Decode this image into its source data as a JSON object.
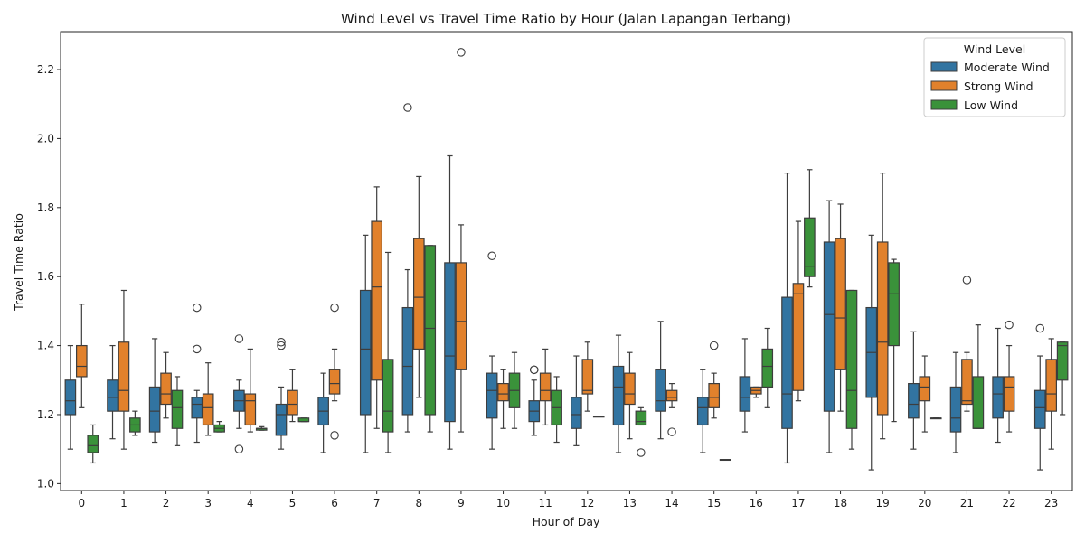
{
  "chart_data": {
    "type": "box",
    "title": "Wind Level vs Travel Time Ratio by Hour (Jalan Lapangan Terbang)",
    "xlabel": "Hour of Day",
    "ylabel": "Travel Time Ratio",
    "categories": [
      "0",
      "1",
      "2",
      "3",
      "4",
      "5",
      "6",
      "7",
      "8",
      "9",
      "10",
      "11",
      "12",
      "13",
      "14",
      "15",
      "16",
      "17",
      "18",
      "19",
      "20",
      "21",
      "22",
      "23"
    ],
    "ylim": [
      0.98,
      2.31
    ],
    "yticks": [
      "1.0",
      "1.2",
      "1.4",
      "1.6",
      "1.8",
      "2.0",
      "2.2"
    ],
    "legend": {
      "title": "Wind Level",
      "placement": "top-right"
    },
    "series": [
      {
        "name": "Moderate Wind",
        "color": "#1f77b4",
        "fill": "#3274a1",
        "boxes": [
          {
            "min": 1.1,
            "q1": 1.2,
            "median": 1.24,
            "q3": 1.3,
            "max": 1.4,
            "outliers": []
          },
          {
            "min": 1.13,
            "q1": 1.21,
            "median": 1.25,
            "q3": 1.3,
            "max": 1.4,
            "outliers": []
          },
          {
            "min": 1.12,
            "q1": 1.15,
            "median": 1.21,
            "q3": 1.28,
            "max": 1.42,
            "outliers": []
          },
          {
            "min": 1.12,
            "q1": 1.19,
            "median": 1.23,
            "q3": 1.25,
            "max": 1.27,
            "outliers": [
              1.51,
              1.39
            ]
          },
          {
            "min": 1.16,
            "q1": 1.21,
            "median": 1.24,
            "q3": 1.27,
            "max": 1.3,
            "outliers": [
              1.42,
              1.1
            ]
          },
          {
            "min": 1.1,
            "q1": 1.14,
            "median": 1.2,
            "q3": 1.23,
            "max": 1.28,
            "outliers": [
              1.41,
              1.4
            ]
          },
          {
            "min": 1.09,
            "q1": 1.17,
            "median": 1.21,
            "q3": 1.25,
            "max": 1.32,
            "outliers": []
          },
          {
            "min": 1.09,
            "q1": 1.2,
            "median": 1.39,
            "q3": 1.56,
            "max": 1.72,
            "outliers": []
          },
          {
            "min": 1.15,
            "q1": 1.2,
            "median": 1.34,
            "q3": 1.51,
            "max": 1.62,
            "outliers": [
              2.09
            ]
          },
          {
            "min": 1.1,
            "q1": 1.18,
            "median": 1.37,
            "q3": 1.64,
            "max": 1.95,
            "outliers": []
          },
          {
            "min": 1.1,
            "q1": 1.19,
            "median": 1.27,
            "q3": 1.32,
            "max": 1.37,
            "outliers": [
              1.66
            ]
          },
          {
            "min": 1.14,
            "q1": 1.18,
            "median": 1.21,
            "q3": 1.24,
            "max": 1.3,
            "outliers": [
              1.33,
              1.33
            ]
          },
          {
            "min": 1.11,
            "q1": 1.16,
            "median": 1.2,
            "q3": 1.25,
            "max": 1.37,
            "outliers": []
          },
          {
            "min": 1.09,
            "q1": 1.17,
            "median": 1.28,
            "q3": 1.34,
            "max": 1.43,
            "outliers": []
          },
          {
            "min": 1.13,
            "q1": 1.21,
            "median": 1.24,
            "q3": 1.33,
            "max": 1.47,
            "outliers": []
          },
          {
            "min": 1.09,
            "q1": 1.17,
            "median": 1.22,
            "q3": 1.25,
            "max": 1.33,
            "outliers": []
          },
          {
            "min": 1.15,
            "q1": 1.21,
            "median": 1.25,
            "q3": 1.31,
            "max": 1.42,
            "outliers": []
          },
          {
            "min": 1.06,
            "q1": 1.16,
            "median": 1.26,
            "q3": 1.54,
            "max": 1.9,
            "outliers": []
          },
          {
            "min": 1.09,
            "q1": 1.21,
            "median": 1.49,
            "q3": 1.7,
            "max": 1.82,
            "outliers": []
          },
          {
            "min": 1.04,
            "q1": 1.25,
            "median": 1.38,
            "q3": 1.51,
            "max": 1.72,
            "outliers": []
          },
          {
            "min": 1.1,
            "q1": 1.19,
            "median": 1.23,
            "q3": 1.29,
            "max": 1.44,
            "outliers": []
          },
          {
            "min": 1.09,
            "q1": 1.15,
            "median": 1.19,
            "q3": 1.28,
            "max": 1.38,
            "outliers": []
          },
          {
            "min": 1.12,
            "q1": 1.19,
            "median": 1.26,
            "q3": 1.31,
            "max": 1.45,
            "outliers": []
          },
          {
            "min": 1.04,
            "q1": 1.16,
            "median": 1.22,
            "q3": 1.27,
            "max": 1.37,
            "outliers": [
              1.45
            ]
          }
        ]
      },
      {
        "name": "Strong Wind",
        "color": "#ff7f0e",
        "fill": "#e1812c",
        "boxes": [
          {
            "min": 1.22,
            "q1": 1.31,
            "median": 1.34,
            "q3": 1.4,
            "max": 1.52,
            "outliers": []
          },
          {
            "min": 1.1,
            "q1": 1.21,
            "median": 1.27,
            "q3": 1.41,
            "max": 1.56,
            "outliers": []
          },
          {
            "min": 1.19,
            "q1": 1.23,
            "median": 1.26,
            "q3": 1.32,
            "max": 1.38,
            "outliers": []
          },
          {
            "min": 1.14,
            "q1": 1.17,
            "median": 1.22,
            "q3": 1.26,
            "max": 1.35,
            "outliers": []
          },
          {
            "min": 1.15,
            "q1": 1.17,
            "median": 1.24,
            "q3": 1.26,
            "max": 1.39,
            "outliers": []
          },
          {
            "min": 1.18,
            "q1": 1.2,
            "median": 1.23,
            "q3": 1.27,
            "max": 1.33,
            "outliers": []
          },
          {
            "min": 1.24,
            "q1": 1.26,
            "median": 1.29,
            "q3": 1.33,
            "max": 1.39,
            "outliers": [
              1.51,
              1.14
            ]
          },
          {
            "min": 1.16,
            "q1": 1.3,
            "median": 1.57,
            "q3": 1.76,
            "max": 1.86,
            "outliers": []
          },
          {
            "min": 1.25,
            "q1": 1.39,
            "median": 1.54,
            "q3": 1.71,
            "max": 1.89,
            "outliers": []
          },
          {
            "min": 1.15,
            "q1": 1.33,
            "median": 1.47,
            "q3": 1.64,
            "max": 1.75,
            "outliers": [
              2.25
            ]
          },
          {
            "min": 1.16,
            "q1": 1.24,
            "median": 1.26,
            "q3": 1.29,
            "max": 1.33,
            "outliers": []
          },
          {
            "min": 1.17,
            "q1": 1.24,
            "median": 1.27,
            "q3": 1.32,
            "max": 1.39,
            "outliers": []
          },
          {
            "min": 1.21,
            "q1": 1.26,
            "median": 1.27,
            "q3": 1.36,
            "max": 1.41,
            "outliers": []
          },
          {
            "min": 1.13,
            "q1": 1.23,
            "median": 1.26,
            "q3": 1.32,
            "max": 1.38,
            "outliers": []
          },
          {
            "min": 1.22,
            "q1": 1.24,
            "median": 1.25,
            "q3": 1.27,
            "max": 1.29,
            "outliers": [
              1.15
            ]
          },
          {
            "min": 1.19,
            "q1": 1.22,
            "median": 1.25,
            "q3": 1.29,
            "max": 1.32,
            "outliers": [
              1.4
            ]
          },
          {
            "min": 1.25,
            "q1": 1.26,
            "median": 1.27,
            "q3": 1.28,
            "max": 1.28,
            "outliers": []
          },
          {
            "min": 1.24,
            "q1": 1.27,
            "median": 1.55,
            "q3": 1.58,
            "max": 1.76,
            "outliers": []
          },
          {
            "min": 1.21,
            "q1": 1.33,
            "median": 1.48,
            "q3": 1.71,
            "max": 1.81,
            "outliers": []
          },
          {
            "min": 1.13,
            "q1": 1.2,
            "median": 1.41,
            "q3": 1.7,
            "max": 1.9,
            "outliers": []
          },
          {
            "min": 1.15,
            "q1": 1.24,
            "median": 1.28,
            "q3": 1.31,
            "max": 1.37,
            "outliers": []
          },
          {
            "min": 1.21,
            "q1": 1.23,
            "median": 1.24,
            "q3": 1.36,
            "max": 1.38,
            "outliers": [
              1.59
            ]
          },
          {
            "min": 1.15,
            "q1": 1.21,
            "median": 1.28,
            "q3": 1.31,
            "max": 1.4,
            "outliers": [
              1.46
            ]
          },
          {
            "min": 1.1,
            "q1": 1.21,
            "median": 1.26,
            "q3": 1.36,
            "max": 1.42,
            "outliers": []
          }
        ]
      },
      {
        "name": "Low Wind",
        "color": "#2ca02c",
        "fill": "#3a923a",
        "boxes": [
          {
            "min": 1.06,
            "q1": 1.09,
            "median": 1.11,
            "q3": 1.14,
            "max": 1.17,
            "outliers": []
          },
          {
            "min": 1.14,
            "q1": 1.15,
            "median": 1.17,
            "q3": 1.19,
            "max": 1.21,
            "outliers": []
          },
          {
            "min": 1.11,
            "q1": 1.16,
            "median": 1.22,
            "q3": 1.27,
            "max": 1.31,
            "outliers": []
          },
          {
            "min": 1.15,
            "q1": 1.15,
            "median": 1.16,
            "q3": 1.17,
            "max": 1.18,
            "outliers": []
          },
          {
            "min": 1.155,
            "q1": 1.155,
            "median": 1.16,
            "q3": 1.16,
            "max": 1.165,
            "outliers": []
          },
          {
            "min": 1.18,
            "q1": 1.18,
            "median": 1.18,
            "q3": 1.19,
            "max": 1.19,
            "outliers": []
          },
          null,
          {
            "min": 1.09,
            "q1": 1.15,
            "median": 1.21,
            "q3": 1.36,
            "max": 1.67,
            "outliers": []
          },
          {
            "min": 1.15,
            "q1": 1.2,
            "median": 1.45,
            "q3": 1.69,
            "max": 1.69,
            "outliers": []
          },
          null,
          {
            "min": 1.16,
            "q1": 1.22,
            "median": 1.27,
            "q3": 1.32,
            "max": 1.38,
            "outliers": []
          },
          {
            "min": 1.12,
            "q1": 1.17,
            "median": 1.22,
            "q3": 1.27,
            "max": 1.31,
            "outliers": []
          },
          {
            "min": 1.195,
            "q1": 1.195,
            "median": 1.195,
            "q3": 1.195,
            "max": 1.195,
            "outliers": []
          },
          {
            "min": 1.17,
            "q1": 1.17,
            "median": 1.18,
            "q3": 1.21,
            "max": 1.22,
            "outliers": [
              1.09
            ]
          },
          null,
          {
            "min": 1.07,
            "q1": 1.07,
            "median": 1.07,
            "q3": 1.07,
            "max": 1.07,
            "outliers": []
          },
          {
            "min": 1.22,
            "q1": 1.28,
            "median": 1.34,
            "q3": 1.39,
            "max": 1.45,
            "outliers": []
          },
          {
            "min": 1.57,
            "q1": 1.6,
            "median": 1.63,
            "q3": 1.77,
            "max": 1.91,
            "outliers": []
          },
          {
            "min": 1.1,
            "q1": 1.16,
            "median": 1.27,
            "q3": 1.56,
            "max": 1.56,
            "outliers": []
          },
          {
            "min": 1.18,
            "q1": 1.4,
            "median": 1.55,
            "q3": 1.64,
            "max": 1.65,
            "outliers": []
          },
          {
            "min": 1.19,
            "q1": 1.19,
            "median": 1.19,
            "q3": 1.19,
            "max": 1.19,
            "outliers": []
          },
          {
            "min": 1.16,
            "q1": 1.16,
            "median": 1.16,
            "q3": 1.31,
            "max": 1.46,
            "outliers": []
          },
          null,
          {
            "min": 1.2,
            "q1": 1.3,
            "median": 1.4,
            "q3": 1.41,
            "max": 1.41,
            "outliers": []
          }
        ]
      }
    ]
  }
}
